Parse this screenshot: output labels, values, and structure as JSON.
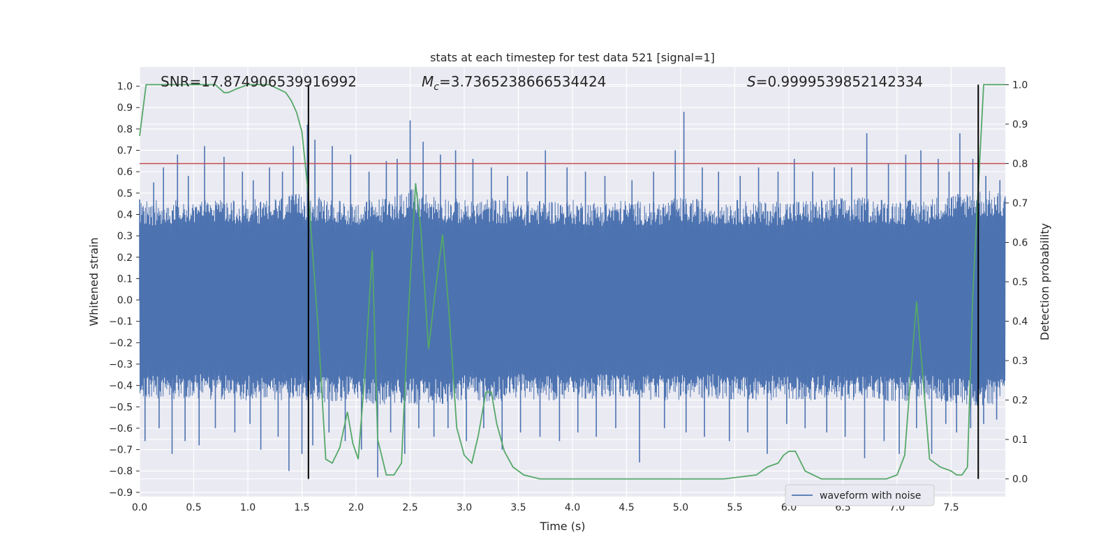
{
  "chart_data": {
    "type": "line",
    "title": "stats at each timestep for test data 521 [signal=1]",
    "xlabel": "Time (s)",
    "ylabel_left": "Whitened strain",
    "ylabel_right": "Detection probability",
    "xlim": [
      0.0,
      8.0
    ],
    "ylim_left": [
      -0.92,
      1.09
    ],
    "ylim_right": [
      -0.045,
      1.045
    ],
    "x_ticks": [
      "0.0",
      "0.5",
      "1.0",
      "1.5",
      "2.0",
      "2.5",
      "3.0",
      "3.5",
      "4.0",
      "4.5",
      "5.0",
      "5.5",
      "6.0",
      "6.5",
      "7.0",
      "7.5"
    ],
    "y_left_ticks": [
      "1.0",
      "0.9",
      "0.8",
      "0.7",
      "0.6",
      "0.5",
      "0.4",
      "0.3",
      "0.2",
      "0.1",
      "0.0",
      "−0.1",
      "−0.2",
      "−0.3",
      "−0.4",
      "−0.5",
      "−0.6",
      "−0.7",
      "−0.8",
      "−0.9"
    ],
    "y_right_ticks": [
      "1.0",
      "0.9",
      "0.8",
      "0.7",
      "0.6",
      "0.5",
      "0.4",
      "0.3",
      "0.2",
      "0.1",
      "0.0"
    ],
    "grid": true,
    "legend_position": "lower-right",
    "annotations": {
      "snr": "SNR=17.874906539916992",
      "mc_symbol": "M",
      "mc_sub": "c",
      "mc_value": "=3.7365238666534424",
      "s_symbol": "S",
      "s_value": "=0.9999539852142334"
    },
    "threshold_line": {
      "y": 0.8,
      "axis": "right",
      "color": "#c44e52"
    },
    "vertical_lines": {
      "x": [
        1.56,
        7.75
      ],
      "color": "#000000"
    },
    "series": [
      {
        "name": "waveform with noise",
        "axis": "left",
        "color": "#4c72b0",
        "envelope_x": [
          0.0,
          0.25,
          0.5,
          0.75,
          1.0,
          1.25,
          1.5,
          1.75,
          2.0,
          2.25,
          2.5,
          2.75,
          3.0,
          3.25,
          3.5,
          3.75,
          4.0,
          4.25,
          4.5,
          4.75,
          5.0,
          5.25,
          5.5,
          5.75,
          6.0,
          6.25,
          6.5,
          6.75,
          7.0,
          7.25,
          7.5,
          7.75,
          8.0
        ],
        "envelope_upper": [
          0.46,
          0.47,
          0.48,
          0.47,
          0.47,
          0.48,
          0.5,
          0.47,
          0.46,
          0.48,
          0.52,
          0.49,
          0.47,
          0.48,
          0.46,
          0.47,
          0.47,
          0.46,
          0.47,
          0.46,
          0.48,
          0.47,
          0.47,
          0.46,
          0.47,
          0.47,
          0.48,
          0.48,
          0.47,
          0.47,
          0.5,
          0.52,
          0.5
        ],
        "envelope_lower": [
          -0.45,
          -0.47,
          -0.46,
          -0.47,
          -0.47,
          -0.48,
          -0.47,
          -0.48,
          -0.47,
          -0.5,
          -0.49,
          -0.49,
          -0.47,
          -0.48,
          -0.46,
          -0.47,
          -0.47,
          -0.46,
          -0.46,
          -0.47,
          -0.47,
          -0.46,
          -0.47,
          -0.47,
          -0.47,
          -0.47,
          -0.47,
          -0.47,
          -0.48,
          -0.47,
          -0.48,
          -0.5,
          -0.48
        ],
        "peak_x": [
          0.0,
          0.13,
          0.22,
          0.35,
          0.45,
          0.6,
          0.78,
          0.95,
          1.05,
          1.2,
          1.32,
          1.42,
          1.55,
          1.62,
          1.78,
          1.95,
          2.12,
          2.28,
          2.38,
          2.5,
          2.62,
          2.78,
          2.92,
          3.08,
          3.25,
          3.4,
          3.58,
          3.75,
          3.95,
          4.12,
          4.3,
          4.55,
          4.75,
          4.95,
          5.03,
          5.2,
          5.35,
          5.55,
          5.72,
          5.9,
          6.05,
          6.22,
          6.42,
          6.58,
          6.72,
          6.92,
          7.08,
          7.22,
          7.38,
          7.48,
          7.58,
          7.7,
          7.82,
          7.95
        ],
        "peak_y": [
          0.47,
          0.55,
          0.62,
          0.68,
          0.58,
          0.72,
          0.67,
          0.6,
          0.56,
          0.62,
          0.6,
          0.72,
          0.82,
          0.75,
          0.72,
          0.68,
          0.6,
          0.65,
          0.66,
          0.84,
          0.74,
          0.68,
          0.7,
          0.66,
          0.62,
          0.58,
          0.6,
          0.7,
          0.62,
          0.6,
          0.58,
          0.56,
          0.6,
          0.7,
          0.88,
          0.62,
          0.6,
          0.58,
          0.62,
          0.6,
          0.66,
          0.6,
          0.62,
          0.62,
          0.78,
          0.64,
          0.68,
          0.7,
          0.66,
          0.6,
          0.78,
          0.66,
          0.58,
          0.56
        ],
        "trough_x": [
          0.05,
          0.18,
          0.3,
          0.42,
          0.55,
          0.7,
          0.88,
          1.02,
          1.12,
          1.28,
          1.38,
          1.5,
          1.6,
          1.75,
          1.9,
          2.05,
          2.2,
          2.32,
          2.45,
          2.58,
          2.72,
          2.85,
          3.02,
          3.18,
          3.35,
          3.52,
          3.7,
          3.88,
          4.05,
          4.22,
          4.4,
          4.62,
          4.85,
          5.05,
          5.22,
          5.45,
          5.62,
          5.8,
          5.98,
          6.15,
          6.35,
          6.52,
          6.7,
          6.88,
          7.02,
          7.18,
          7.32,
          7.45,
          7.55,
          7.68,
          7.8,
          7.92
        ],
        "trough_y": [
          -0.66,
          -0.6,
          -0.72,
          -0.66,
          -0.68,
          -0.6,
          -0.62,
          -0.58,
          -0.7,
          -0.64,
          -0.8,
          -0.72,
          -0.68,
          -0.62,
          -0.66,
          -0.7,
          -0.83,
          -0.62,
          -0.72,
          -0.6,
          -0.64,
          -0.6,
          -0.66,
          -0.6,
          -0.7,
          -0.62,
          -0.64,
          -0.66,
          -0.62,
          -0.64,
          -0.6,
          -0.76,
          -0.6,
          -0.62,
          -0.64,
          -0.66,
          -0.62,
          -0.72,
          -0.58,
          -0.6,
          -0.62,
          -0.64,
          -0.74,
          -0.66,
          -0.72,
          -0.6,
          -0.72,
          -0.58,
          -0.62,
          -0.6,
          -0.58,
          -0.56
        ]
      },
      {
        "axis": "right",
        "color": "#55a868",
        "x": [
          0.0,
          0.06,
          0.15,
          0.3,
          0.5,
          0.7,
          0.78,
          0.82,
          0.9,
          1.0,
          1.2,
          1.35,
          1.4,
          1.45,
          1.5,
          1.56,
          1.65,
          1.72,
          1.78,
          1.85,
          1.92,
          1.97,
          2.02,
          2.08,
          2.15,
          2.2,
          2.28,
          2.35,
          2.42,
          2.48,
          2.55,
          2.6,
          2.67,
          2.73,
          2.8,
          2.86,
          2.93,
          3.0,
          3.07,
          3.13,
          3.2,
          3.25,
          3.3,
          3.37,
          3.45,
          3.55,
          3.7,
          3.85,
          4.0,
          4.3,
          4.6,
          5.0,
          5.4,
          5.7,
          5.8,
          5.9,
          5.95,
          6.0,
          6.06,
          6.15,
          6.3,
          6.6,
          6.9,
          7.0,
          7.07,
          7.13,
          7.18,
          7.22,
          7.3,
          7.4,
          7.5,
          7.55,
          7.6,
          7.65,
          7.7,
          7.8,
          7.9,
          8.0
        ],
        "y": [
          0.87,
          1.0,
          1.0,
          1.0,
          1.0,
          1.0,
          0.98,
          0.98,
          0.99,
          1.0,
          1.0,
          0.98,
          0.96,
          0.93,
          0.88,
          0.72,
          0.38,
          0.05,
          0.04,
          0.08,
          0.17,
          0.09,
          0.05,
          0.26,
          0.58,
          0.1,
          0.01,
          0.01,
          0.04,
          0.4,
          0.75,
          0.63,
          0.33,
          0.47,
          0.62,
          0.42,
          0.13,
          0.06,
          0.04,
          0.11,
          0.22,
          0.22,
          0.14,
          0.07,
          0.03,
          0.01,
          0.0,
          0.0,
          0.0,
          0.0,
          0.0,
          0.0,
          0.0,
          0.01,
          0.03,
          0.04,
          0.06,
          0.07,
          0.07,
          0.02,
          0.0,
          0.0,
          0.0,
          0.01,
          0.06,
          0.28,
          0.45,
          0.32,
          0.05,
          0.03,
          0.02,
          0.01,
          0.01,
          0.03,
          0.47,
          1.0,
          1.0,
          1.0
        ]
      }
    ]
  }
}
